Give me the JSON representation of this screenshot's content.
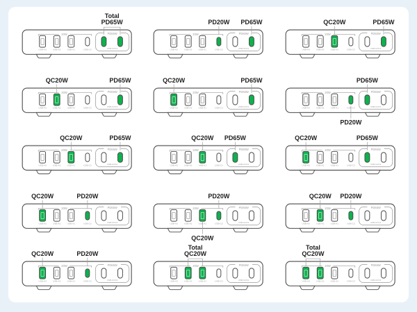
{
  "colors": {
    "background": "#e9f1f8",
    "panel": "#ffffff",
    "active_port": "#0db24d",
    "outline": "#4a4a4a",
    "caption_text": "#9e9e9e",
    "label_text": "#1e1e1e",
    "leader": "#9b9b9b"
  },
  "grid": {
    "columns": 3,
    "rows": 5
  },
  "device": {
    "name": "multi-port charging station",
    "bracket_label": "20W",
    "group_label": "PD65W",
    "group_caption": "USB-C2/C1",
    "ports": [
      {
        "id": "a3",
        "type": "usb-a",
        "caption": "USB-A3"
      },
      {
        "id": "a2",
        "type": "usb-a",
        "caption": "USB-A2"
      },
      {
        "id": "a1",
        "type": "usb-a",
        "caption": "USB-A1"
      },
      {
        "id": "c3",
        "type": "usb-c",
        "caption": "USB-C3"
      },
      {
        "id": "c2",
        "type": "usb-c",
        "caption": ""
      },
      {
        "id": "c1",
        "type": "usb-c",
        "caption": ""
      }
    ]
  },
  "cells": [
    {
      "labels": [
        {
          "lines": [
            "Total",
            "PD65W"
          ],
          "position": "top",
          "targets": [
            "c2",
            "c1"
          ]
        }
      ],
      "active": [
        "c2",
        "c1"
      ]
    },
    {
      "labels": [
        {
          "text": "PD20W",
          "position": "top",
          "targets": [
            "c3"
          ]
        },
        {
          "text": "PD65W",
          "position": "top",
          "targets": [
            "c1"
          ]
        }
      ],
      "active": [
        "c3",
        "c1"
      ]
    },
    {
      "labels": [
        {
          "text": "QC20W",
          "position": "top",
          "targets": [
            "a1"
          ]
        },
        {
          "text": "PD65W",
          "position": "top",
          "targets": [
            "c1"
          ]
        }
      ],
      "active": [
        "a1",
        "c1"
      ]
    },
    {
      "labels": [
        {
          "text": "QC20W",
          "position": "top",
          "targets": [
            "a2"
          ]
        },
        {
          "text": "PD65W",
          "position": "top",
          "targets": [
            "c1"
          ]
        }
      ],
      "active": [
        "a2",
        "c1"
      ]
    },
    {
      "labels": [
        {
          "text": "QC20W",
          "position": "top",
          "targets": [
            "a3"
          ]
        },
        {
          "text": "PD65W",
          "position": "top",
          "targets": [
            "c1"
          ]
        }
      ],
      "active": [
        "a3",
        "c1"
      ]
    },
    {
      "labels": [
        {
          "text": "PD65W",
          "position": "top",
          "targets": [
            "c2"
          ]
        },
        {
          "text": "PD20W",
          "position": "bottom",
          "targets": [
            "c3"
          ]
        }
      ],
      "active": [
        "c3",
        "c2"
      ]
    },
    {
      "labels": [
        {
          "text": "QC20W",
          "position": "top",
          "targets": [
            "a1"
          ]
        },
        {
          "text": "PD65W",
          "position": "top",
          "targets": [
            "c1"
          ]
        }
      ],
      "active": [
        "a1",
        "c1"
      ]
    },
    {
      "labels": [
        {
          "text": "QC20W",
          "position": "top",
          "targets": [
            "a1"
          ]
        },
        {
          "text": "PD65W",
          "position": "top",
          "targets": [
            "c2"
          ]
        }
      ],
      "active": [
        "a1",
        "c2"
      ]
    },
    {
      "labels": [
        {
          "text": "QC20W",
          "position": "top",
          "targets": [
            "a3"
          ]
        },
        {
          "text": "PD65W",
          "position": "top",
          "targets": [
            "c2"
          ]
        }
      ],
      "active": [
        "a3",
        "c2"
      ]
    },
    {
      "labels": [
        {
          "text": "QC20W",
          "position": "top",
          "targets": [
            "a3"
          ]
        },
        {
          "text": "PD20W",
          "position": "top",
          "targets": [
            "c3"
          ]
        }
      ],
      "active": [
        "a3",
        "c3"
      ]
    },
    {
      "labels": [
        {
          "text": "PD20W",
          "position": "top",
          "targets": [
            "c3"
          ]
        },
        {
          "text": "QC20W",
          "position": "bottom",
          "targets": [
            "a1"
          ]
        }
      ],
      "active": [
        "a1",
        "c3"
      ]
    },
    {
      "labels": [
        {
          "text": "QC20W",
          "position": "top",
          "targets": [
            "a2"
          ]
        },
        {
          "text": "PD20W",
          "position": "top",
          "targets": [
            "c3"
          ]
        }
      ],
      "active": [
        "a2",
        "c3"
      ]
    },
    {
      "labels": [
        {
          "text": "QC20W",
          "position": "top",
          "targets": [
            "a3"
          ]
        },
        {
          "text": "PD20W",
          "position": "top",
          "targets": [
            "c3"
          ]
        }
      ],
      "active": [
        "a3",
        "c3"
      ]
    },
    {
      "labels": [
        {
          "lines": [
            "Total",
            "QC20W"
          ],
          "position": "top",
          "targets": [
            "a2",
            "a1"
          ]
        }
      ],
      "active": [
        "a2",
        "a1"
      ]
    },
    {
      "labels": [
        {
          "lines": [
            "Total",
            "QC20W"
          ],
          "position": "top",
          "targets": [
            "a3",
            "a2"
          ]
        }
      ],
      "active": [
        "a3",
        "a2"
      ]
    }
  ]
}
